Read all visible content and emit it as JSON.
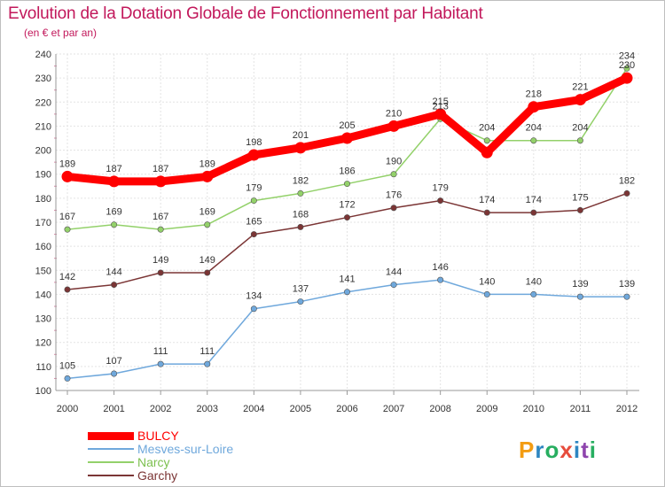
{
  "title": "Evolution de la Dotation Globale de Fonctionnement par Habitant",
  "subtitle": "(en € et par an)",
  "logo": {
    "letters": [
      "P",
      "r",
      "o",
      "x",
      "i",
      "t",
      "i"
    ],
    "colors": [
      "#f39c12",
      "#2e86c1",
      "#27ae60",
      "#e74c3c",
      "#2e86c1",
      "#8e44ad",
      "#27ae60"
    ]
  },
  "chart_data": {
    "type": "line",
    "x": [
      "2000",
      "2001",
      "2002",
      "2003",
      "2004",
      "2005",
      "2006",
      "2007",
      "2008",
      "2009",
      "2010",
      "2011",
      "2012"
    ],
    "ylim": [
      100,
      240
    ],
    "yticks": [
      100,
      110,
      120,
      130,
      140,
      150,
      160,
      170,
      180,
      190,
      200,
      210,
      220,
      230,
      240
    ],
    "grid": true,
    "legend_position": "bottom-left",
    "series": [
      {
        "name": "BULCY",
        "color": "#ff0000",
        "values": [
          189,
          187,
          187,
          189,
          198,
          201,
          205,
          210,
          215,
          199,
          218,
          221,
          230
        ],
        "labels": [
          "189",
          "187",
          "187",
          "189",
          "198",
          "201",
          "205",
          "210",
          "215",
          "",
          "218",
          "221",
          "230"
        ]
      },
      {
        "name": "Mesves-sur-Loire",
        "color": "#6fa8dc",
        "values": [
          105,
          107,
          111,
          111,
          134,
          137,
          141,
          144,
          146,
          140,
          140,
          139,
          139
        ],
        "labels": [
          "105",
          "107",
          "111",
          "111",
          "134",
          "137",
          "141",
          "144",
          "146",
          "140",
          "140",
          "139",
          "139"
        ]
      },
      {
        "name": "Narcy",
        "color": "#93d16a",
        "values": [
          167,
          169,
          167,
          169,
          179,
          182,
          186,
          190,
          213,
          204,
          204,
          204,
          234
        ],
        "labels": [
          "167",
          "169",
          "167",
          "169",
          "179",
          "182",
          "186",
          "190",
          "213",
          "204",
          "204",
          "204",
          "234"
        ]
      },
      {
        "name": "Garchy",
        "color": "#7b3535",
        "values": [
          142,
          144,
          149,
          149,
          165,
          168,
          172,
          176,
          179,
          174,
          174,
          175,
          182
        ],
        "labels": [
          "142",
          "144",
          "149",
          "149",
          "165",
          "168",
          "172",
          "176",
          "179",
          "174",
          "174",
          "175",
          "182"
        ]
      }
    ]
  }
}
